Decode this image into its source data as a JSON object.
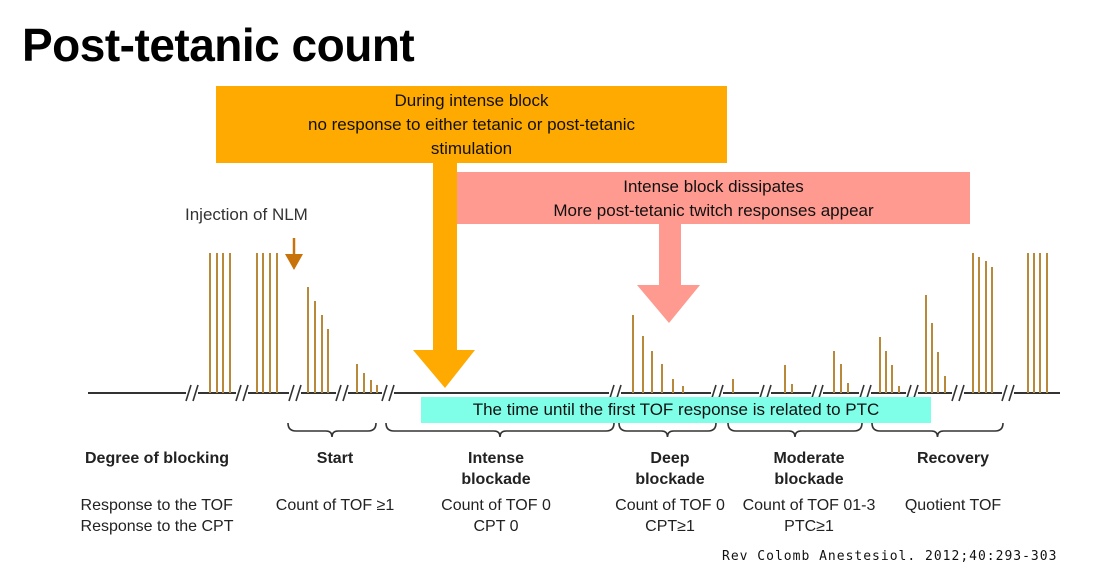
{
  "title": "Post-tetanic count",
  "callouts": {
    "intense_block": [
      "During intense block",
      "no response to either tetanic or post-tetanic",
      "stimulation"
    ],
    "dissipates": [
      "Intense block dissipates",
      "More post-tetanic twitch responses appear"
    ],
    "tof_time": "The time until the first TOF response is related to PTC"
  },
  "diagram": {
    "injection_label": "Injection of NLM",
    "row_header": {
      "title": "Degree of blocking",
      "line1": "Response to the TOF",
      "line2": "Response to the CPT"
    },
    "phases": [
      {
        "name1": "Start",
        "name2": "",
        "resp1": "Count of TOF ≥1",
        "resp2": ""
      },
      {
        "name1": "Intense",
        "name2": "blockade",
        "resp1": "Count of TOF 0",
        "resp2": "CPT 0"
      },
      {
        "name1": "Deep",
        "name2": "blockade",
        "resp1": "Count of TOF 0",
        "resp2": "CPT≥1"
      },
      {
        "name1": "Moderate",
        "name2": "blockade",
        "resp1": "Count of TOF 01-3",
        "resp2": "PTC≥1"
      },
      {
        "name1": "Recovery",
        "name2": "",
        "resp1": "Quotient TOF",
        "resp2": ""
      }
    ]
  },
  "citation": "Rev Colomb Anestesiol. 2012;40:293-303",
  "colors": {
    "orange": "#FFAA00",
    "pink": "#FF9A90",
    "cyan": "#7FFFE8",
    "bar": "#B8893A",
    "injection_arrow": "#C8720A"
  }
}
